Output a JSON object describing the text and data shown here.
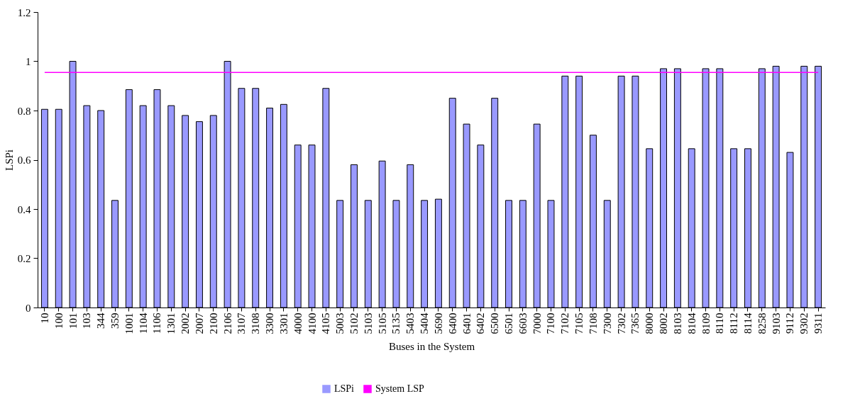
{
  "chart_data": {
    "type": "bar",
    "xlabel": "Buses in the System",
    "ylabel": "LSPi",
    "categories": [
      "10",
      "100",
      "101",
      "103",
      "344",
      "359",
      "1001",
      "1104",
      "1106",
      "1301",
      "2002",
      "2007",
      "2100",
      "2106",
      "3107",
      "3108",
      "3300",
      "3301",
      "4000",
      "4100",
      "4105",
      "5003",
      "5102",
      "5103",
      "5105",
      "5135",
      "5403",
      "5404",
      "5690",
      "6400",
      "6401",
      "6402",
      "6500",
      "6501",
      "6603",
      "7000",
      "7100",
      "7102",
      "7105",
      "7108",
      "7300",
      "7302",
      "7365",
      "8000",
      "8002",
      "8103",
      "8104",
      "8109",
      "8110",
      "8112",
      "8114",
      "8258",
      "9103",
      "9112",
      "9302",
      "9311"
    ],
    "series": [
      {
        "name": "LSPi",
        "color": "#9999ff",
        "values": [
          0.805,
          0.805,
          1.0,
          0.82,
          0.8,
          0.435,
          0.885,
          0.82,
          0.885,
          0.82,
          0.78,
          0.755,
          0.78,
          1.0,
          0.89,
          0.89,
          0.81,
          0.825,
          0.66,
          0.66,
          0.89,
          0.435,
          0.58,
          0.435,
          0.595,
          0.435,
          0.58,
          0.435,
          0.44,
          0.85,
          0.745,
          0.66,
          0.85,
          0.435,
          0.435,
          0.745,
          0.435,
          0.94,
          0.94,
          0.7,
          0.435,
          0.94,
          0.94,
          0.645,
          0.97,
          0.97,
          0.645,
          0.97,
          0.97,
          0.645,
          0.645,
          0.97,
          0.98,
          0.63,
          0.98,
          0.98
        ]
      },
      {
        "name": "System LSP",
        "type": "line",
        "color": "#ff00ff",
        "values": [
          0.955,
          0.955,
          0.955,
          0.955,
          0.955,
          0.955,
          0.955,
          0.955,
          0.955,
          0.955,
          0.955,
          0.955,
          0.955,
          0.955,
          0.955,
          0.955,
          0.955,
          0.955,
          0.955,
          0.955,
          0.955,
          0.955,
          0.955,
          0.955,
          0.955,
          0.955,
          0.955,
          0.955,
          0.955,
          0.955,
          0.955,
          0.955,
          0.955,
          0.955,
          0.955,
          0.955,
          0.955,
          0.955,
          0.955,
          0.955,
          0.955,
          0.955,
          0.955,
          0.955,
          0.955,
          0.955,
          0.955,
          0.955,
          0.955,
          0.955,
          0.955,
          0.955,
          0.955,
          0.955,
          0.955,
          0.955
        ]
      }
    ],
    "ylim": [
      0,
      1.2
    ],
    "yticks": [
      0,
      0.2,
      0.4,
      0.6,
      0.8,
      1,
      1.2
    ],
    "grid": false,
    "legend": "bottom"
  }
}
